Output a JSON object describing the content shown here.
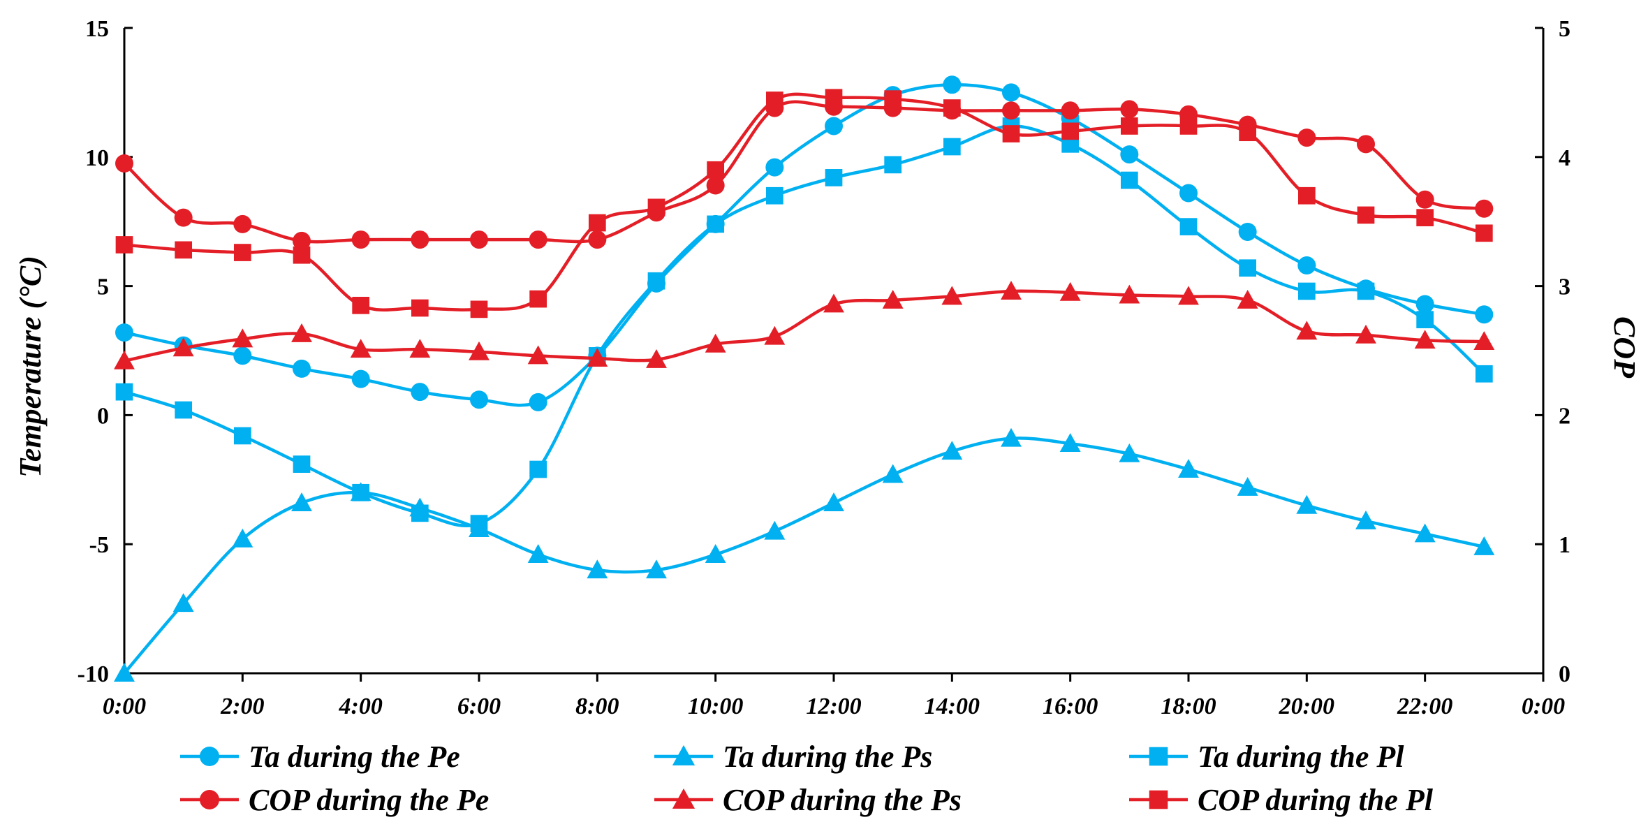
{
  "chart_data": {
    "type": "line",
    "title": "",
    "xlabel": "",
    "ylabel": "Temperature (°C)",
    "y2label": "COP",
    "x": [
      0,
      1,
      2,
      3,
      4,
      5,
      6,
      7,
      8,
      9,
      10,
      11,
      12,
      13,
      14,
      15,
      16,
      17,
      18,
      19,
      20,
      21,
      22,
      23
    ],
    "xlim": [
      0,
      24
    ],
    "ylim": [
      -10,
      15
    ],
    "y2lim": [
      0,
      5
    ],
    "x_ticks": [
      "0:00",
      "2:00",
      "4:00",
      "6:00",
      "8:00",
      "10:00",
      "12:00",
      "14:00",
      "16:00",
      "18:00",
      "20:00",
      "22:00",
      "0:00"
    ],
    "y_ticks": [
      "-10",
      "-5",
      "0",
      "5",
      "10",
      "15"
    ],
    "y2_ticks": [
      "0",
      "1",
      "2",
      "3",
      "4",
      "5"
    ],
    "legend_position": "bottom",
    "series": [
      {
        "name": "Ta during the Pe",
        "axis": "left",
        "marker": "circle",
        "color": "#00B0F0",
        "values": [
          3.2,
          2.7,
          2.3,
          1.8,
          1.4,
          0.9,
          0.6,
          0.5,
          2.3,
          5.1,
          7.4,
          9.6,
          11.2,
          12.4,
          12.8,
          12.5,
          11.5,
          10.1,
          8.6,
          7.1,
          5.8,
          4.9,
          4.3,
          3.9
        ]
      },
      {
        "name": "Ta during the Ps",
        "axis": "left",
        "marker": "triangle",
        "color": "#00B0F0",
        "values": [
          -10,
          -7.3,
          -4.8,
          -3.4,
          -3,
          -3.6,
          -4.4,
          -5.4,
          -6,
          -6,
          -5.4,
          -4.5,
          -3.4,
          -2.3,
          -1.4,
          -0.9,
          -1.1,
          -1.5,
          -2.1,
          -2.8,
          -3.5,
          -4.1,
          -4.6,
          -5.1
        ]
      },
      {
        "name": "Ta during the Pl",
        "axis": "left",
        "marker": "square",
        "color": "#00B0F0",
        "values": [
          0.9,
          0.2,
          -0.8,
          -1.9,
          -3,
          -3.8,
          -4.2,
          -2.1,
          2.3,
          5.2,
          7.4,
          8.5,
          9.2,
          9.7,
          10.4,
          11.2,
          10.5,
          9.1,
          7.3,
          5.7,
          4.8,
          4.8,
          3.7,
          1.6
        ]
      },
      {
        "name": "COP during the Pe",
        "axis": "right",
        "marker": "circle",
        "color": "#E41E26",
        "values": [
          3.95,
          3.53,
          3.48,
          3.35,
          3.36,
          3.36,
          3.36,
          3.36,
          3.36,
          3.57,
          3.78,
          4.38,
          4.39,
          4.38,
          4.36,
          4.36,
          4.36,
          4.37,
          4.33,
          4.25,
          4.15,
          4.1,
          3.67,
          3.6
        ]
      },
      {
        "name": "COP during the Ps",
        "axis": "right",
        "marker": "triangle",
        "color": "#E41E26",
        "values": [
          2.42,
          2.52,
          2.59,
          2.63,
          2.51,
          2.51,
          2.49,
          2.46,
          2.44,
          2.43,
          2.55,
          2.61,
          2.86,
          2.89,
          2.92,
          2.96,
          2.95,
          2.93,
          2.92,
          2.89,
          2.65,
          2.62,
          2.58,
          2.57
        ]
      },
      {
        "name": "COP during the Pl",
        "axis": "right",
        "marker": "square",
        "color": "#E41E26",
        "values": [
          3.32,
          3.28,
          3.26,
          3.24,
          2.85,
          2.83,
          2.82,
          2.9,
          3.49,
          3.61,
          3.9,
          4.44,
          4.46,
          4.45,
          4.38,
          4.18,
          4.2,
          4.24,
          4.24,
          4.19,
          3.7,
          3.55,
          3.53,
          3.41
        ]
      }
    ]
  }
}
